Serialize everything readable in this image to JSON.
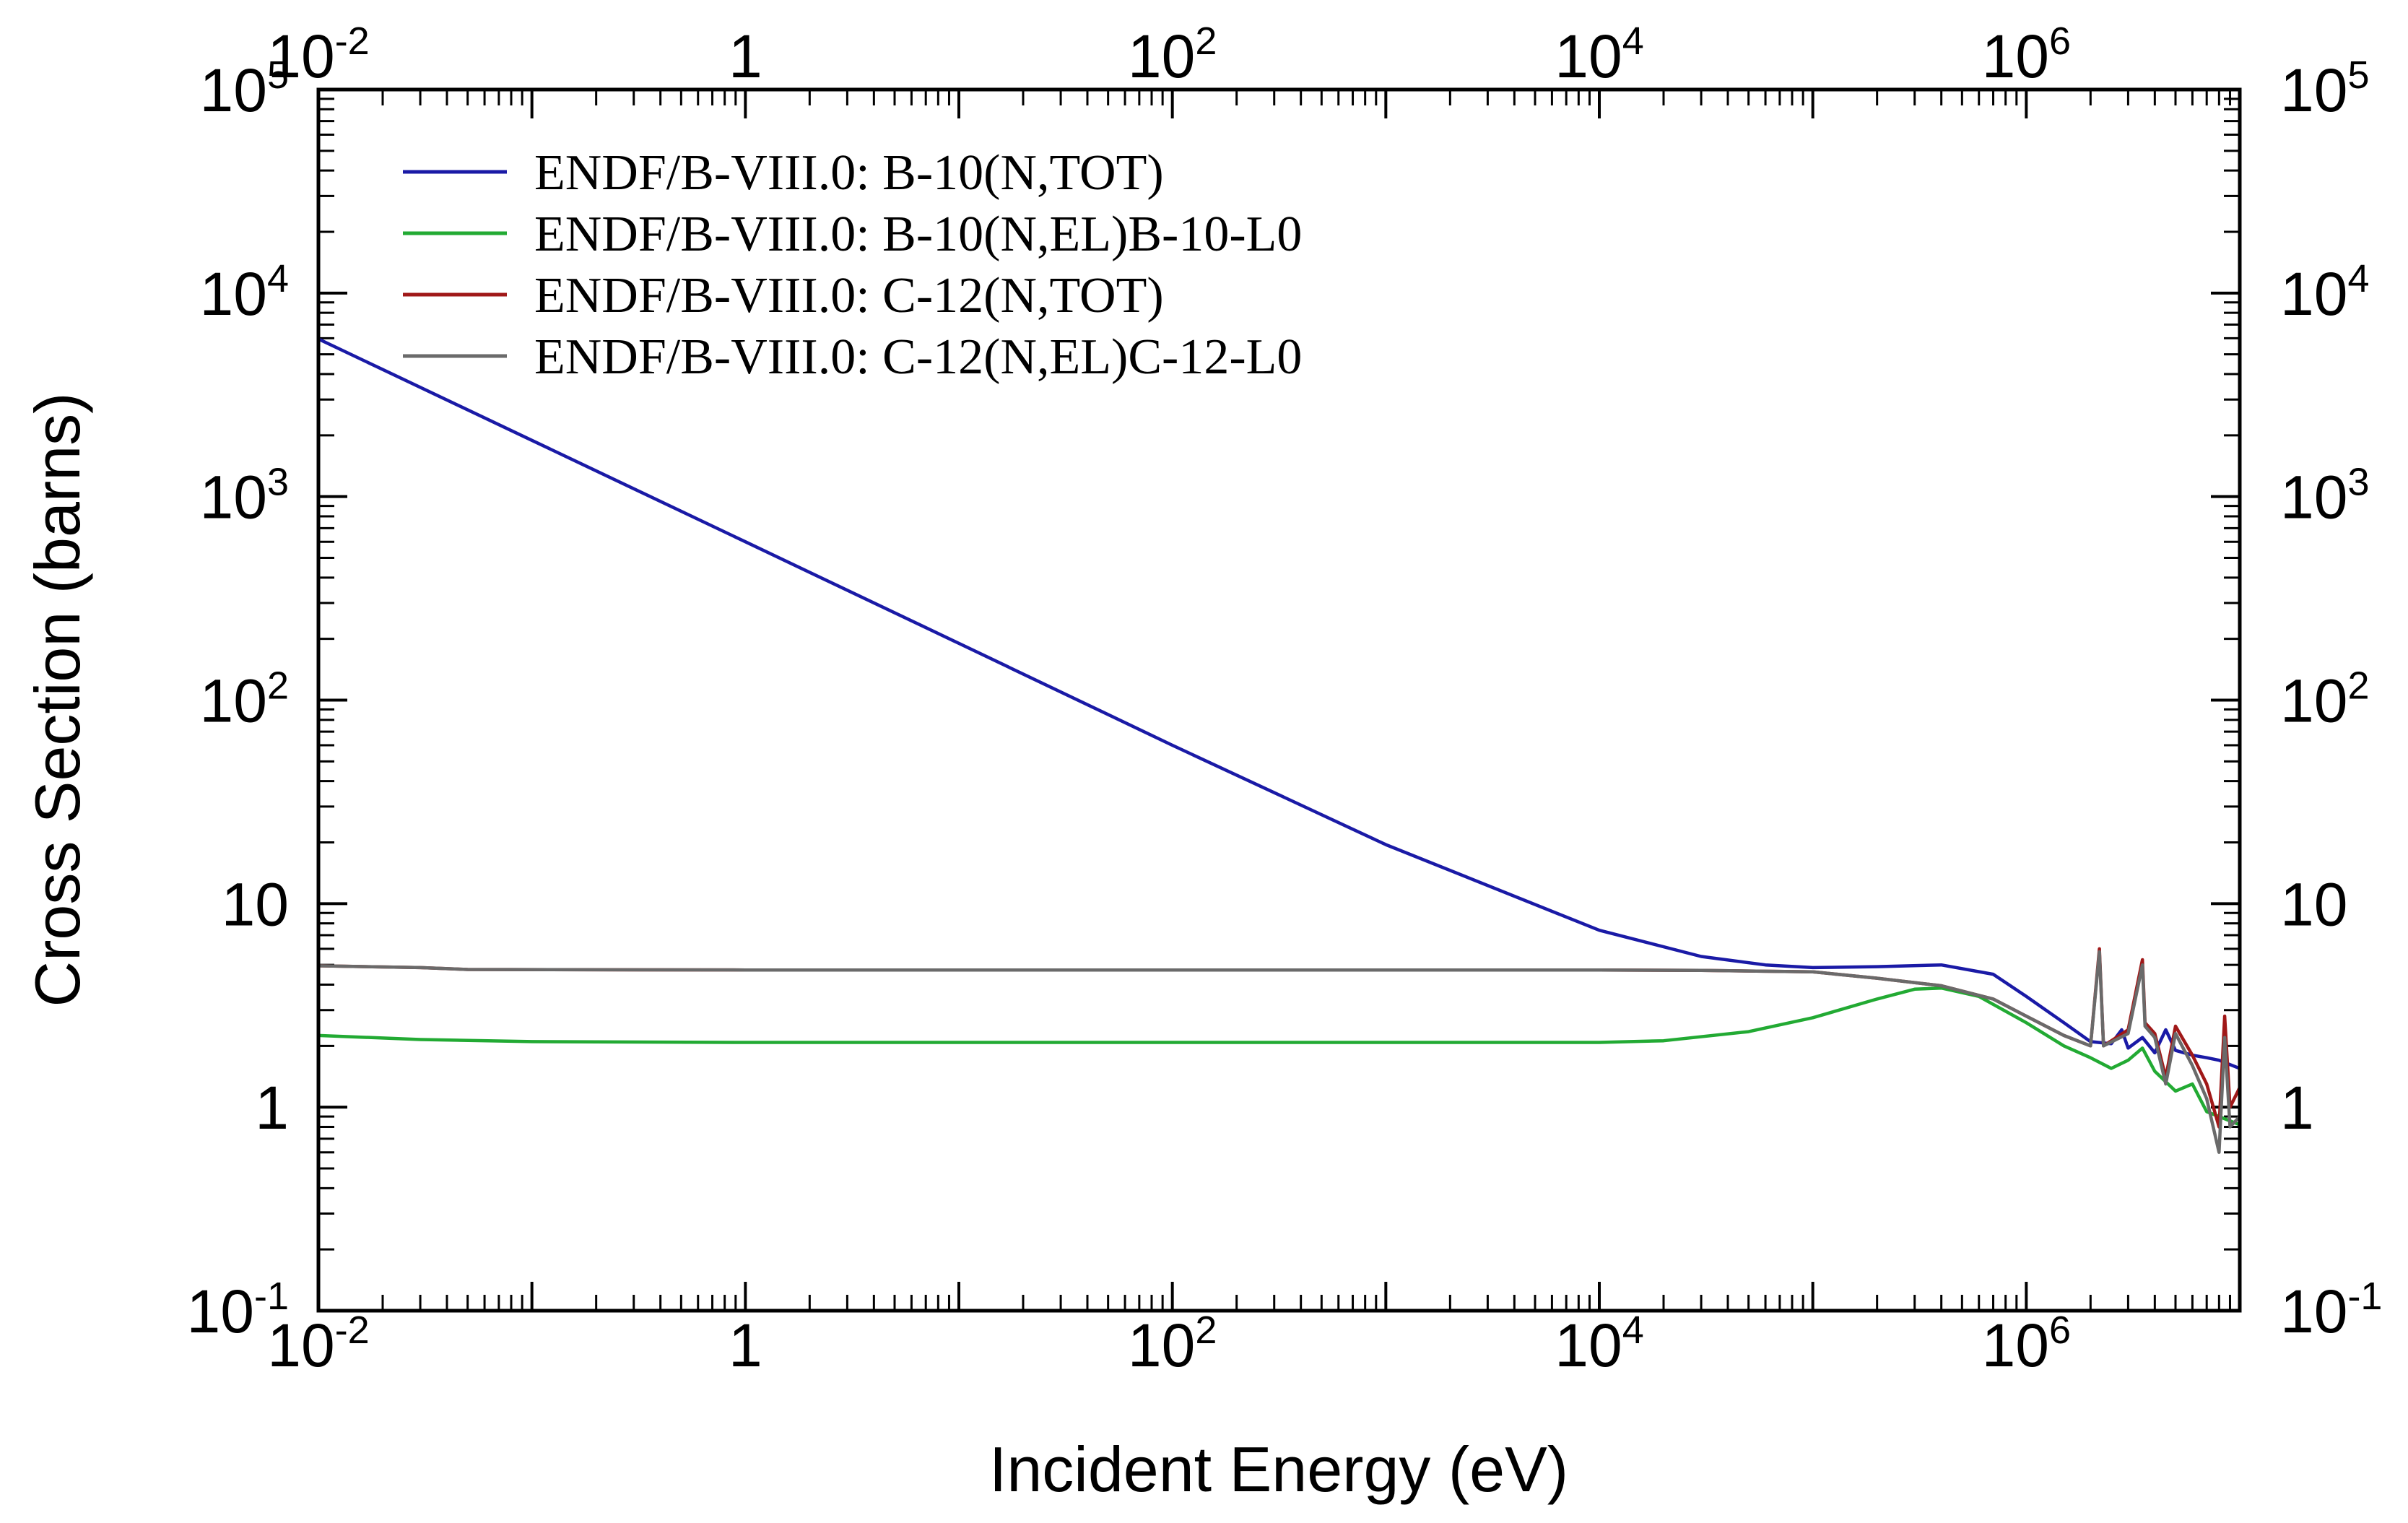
{
  "chart_data": {
    "type": "line",
    "title": "",
    "xlabel": "Incident Energy (eV)",
    "ylabel": "Cross Section (barns)",
    "xscale": "log",
    "yscale": "log",
    "xlim": [
      0.01,
      10000000
    ],
    "ylim": [
      0.1,
      100000
    ],
    "legend_position": "top-left",
    "x_ticks": [
      {
        "value": 0.01,
        "base": "10",
        "exp": "-2"
      },
      {
        "value": 1,
        "base": "1",
        "exp": ""
      },
      {
        "value": 100,
        "base": "10",
        "exp": "2"
      },
      {
        "value": 10000,
        "base": "10",
        "exp": "4"
      },
      {
        "value": 1000000,
        "base": "10",
        "exp": "6"
      }
    ],
    "y_ticks": [
      {
        "value": 0.1,
        "base": "10",
        "exp": "-1"
      },
      {
        "value": 1,
        "base": "1",
        "exp": ""
      },
      {
        "value": 10,
        "base": "10",
        "exp": ""
      },
      {
        "value": 100,
        "base": "10",
        "exp": "2"
      },
      {
        "value": 1000,
        "base": "10",
        "exp": "3"
      },
      {
        "value": 10000,
        "base": "10",
        "exp": "4"
      },
      {
        "value": 100000,
        "base": "10",
        "exp": "5"
      }
    ],
    "series": [
      {
        "name": "ENDF/B-VIII.0: B-10(N,TOT)",
        "color": "#1a1aa6",
        "points": [
          [
            0.01,
            5950
          ],
          [
            0.1,
            1890
          ],
          [
            1,
            600
          ],
          [
            10,
            190
          ],
          [
            100,
            60
          ],
          [
            1000,
            19.5
          ],
          [
            10000,
            7.4
          ],
          [
            30000,
            5.5
          ],
          [
            60000,
            5.0
          ],
          [
            100000,
            4.85
          ],
          [
            200000,
            4.9
          ],
          [
            400000,
            5.0
          ],
          [
            700000,
            4.5
          ],
          [
            1000000,
            3.5
          ],
          [
            1500000,
            2.6
          ],
          [
            2000000,
            2.1
          ],
          [
            2500000,
            2.05
          ],
          [
            2800000,
            2.4
          ],
          [
            3000000,
            1.95
          ],
          [
            3500000,
            2.2
          ],
          [
            4000000,
            1.85
          ],
          [
            4500000,
            2.4
          ],
          [
            5000000,
            1.9
          ],
          [
            6000000,
            1.8
          ],
          [
            7000000,
            1.75
          ],
          [
            8000000,
            1.7
          ],
          [
            10000000,
            1.55
          ]
        ]
      },
      {
        "name": "ENDF/B-VIII.0: B-10(N,EL)B-10-L0",
        "color": "#22aa33",
        "points": [
          [
            0.01,
            2.25
          ],
          [
            0.03,
            2.15
          ],
          [
            0.1,
            2.1
          ],
          [
            1,
            2.08
          ],
          [
            100,
            2.08
          ],
          [
            10000,
            2.08
          ],
          [
            20000,
            2.12
          ],
          [
            50000,
            2.35
          ],
          [
            100000,
            2.75
          ],
          [
            200000,
            3.4
          ],
          [
            300000,
            3.8
          ],
          [
            400000,
            3.85
          ],
          [
            600000,
            3.5
          ],
          [
            1000000,
            2.6
          ],
          [
            1500000,
            2.0
          ],
          [
            2000000,
            1.75
          ],
          [
            2500000,
            1.55
          ],
          [
            3000000,
            1.7
          ],
          [
            3500000,
            1.95
          ],
          [
            4000000,
            1.5
          ],
          [
            5000000,
            1.2
          ],
          [
            6000000,
            1.3
          ],
          [
            7000000,
            0.95
          ],
          [
            8000000,
            0.9
          ],
          [
            10000000,
            0.82
          ]
        ]
      },
      {
        "name": "ENDF/B-VIII.0: C-12(N,TOT)",
        "color": "#a01818",
        "points": [
          [
            0.01,
            4.95
          ],
          [
            0.03,
            4.85
          ],
          [
            0.05,
            4.75
          ],
          [
            1,
            4.72
          ],
          [
            100,
            4.72
          ],
          [
            10000,
            4.72
          ],
          [
            30000,
            4.7
          ],
          [
            100000,
            4.62
          ],
          [
            200000,
            4.3
          ],
          [
            400000,
            3.95
          ],
          [
            700000,
            3.4
          ],
          [
            1000000,
            2.8
          ],
          [
            1500000,
            2.25
          ],
          [
            2000000,
            2.0
          ],
          [
            2200000,
            6.0
          ],
          [
            2300000,
            2.0
          ],
          [
            3000000,
            2.4
          ],
          [
            3500000,
            5.3
          ],
          [
            3600000,
            2.6
          ],
          [
            4000000,
            2.3
          ],
          [
            4500000,
            1.4
          ],
          [
            5000000,
            2.5
          ],
          [
            6000000,
            1.8
          ],
          [
            7000000,
            1.3
          ],
          [
            8000000,
            0.8
          ],
          [
            8500000,
            2.8
          ],
          [
            9000000,
            1.0
          ],
          [
            10000000,
            1.25
          ]
        ]
      },
      {
        "name": "ENDF/B-VIII.0: C-12(N,EL)C-12-L0",
        "color": "#6a6a6a",
        "points": [
          [
            0.01,
            4.95
          ],
          [
            0.03,
            4.85
          ],
          [
            0.05,
            4.75
          ],
          [
            1,
            4.72
          ],
          [
            100,
            4.72
          ],
          [
            10000,
            4.72
          ],
          [
            30000,
            4.7
          ],
          [
            100000,
            4.62
          ],
          [
            200000,
            4.3
          ],
          [
            400000,
            3.95
          ],
          [
            700000,
            3.4
          ],
          [
            1000000,
            2.8
          ],
          [
            1500000,
            2.25
          ],
          [
            2000000,
            2.0
          ],
          [
            2200000,
            5.8
          ],
          [
            2300000,
            2.0
          ],
          [
            3000000,
            2.3
          ],
          [
            3500000,
            5.0
          ],
          [
            3600000,
            2.5
          ],
          [
            4000000,
            2.2
          ],
          [
            4500000,
            1.3
          ],
          [
            5000000,
            2.3
          ],
          [
            6000000,
            1.6
          ],
          [
            7000000,
            1.1
          ],
          [
            8000000,
            0.6
          ],
          [
            8500000,
            2.2
          ],
          [
            9000000,
            0.8
          ],
          [
            10000000,
            0.9
          ]
        ]
      }
    ]
  }
}
